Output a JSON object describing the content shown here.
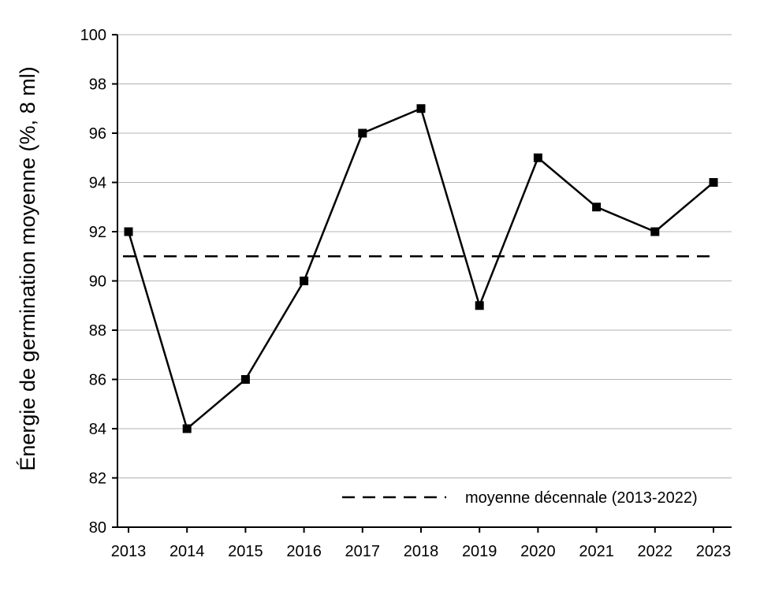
{
  "chart_data": {
    "type": "line",
    "title": "",
    "xlabel": "",
    "ylabel": "Énergie de germination moyenne (%, 8 ml)",
    "x": [
      "2013",
      "2014",
      "2015",
      "2016",
      "2017",
      "2018",
      "2019",
      "2020",
      "2021",
      "2022",
      "2023"
    ],
    "series": [
      {
        "values": [
          92,
          84,
          86,
          90,
          96,
          97,
          89,
          95,
          93,
          92,
          94
        ],
        "color": "#000000",
        "marker": "square"
      }
    ],
    "reference_lines": [
      {
        "name": "moyenne décennale (2013-2022)",
        "value": 91,
        "style": "dashed",
        "color": "#000000"
      }
    ],
    "ylim": [
      80,
      100
    ],
    "yticks": [
      "80",
      "82",
      "84",
      "86",
      "88",
      "90",
      "92",
      "94",
      "96",
      "98",
      "100"
    ],
    "grid": "horizontal",
    "legend_position": "bottom-right"
  }
}
